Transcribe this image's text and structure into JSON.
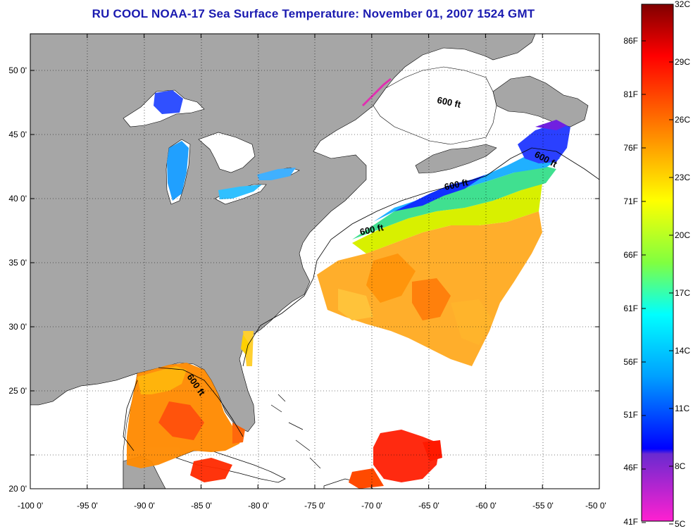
{
  "title": "RU COOL  NOAA-17  Sea Surface Temperature:  November 01, 2007 1524 GMT",
  "map": {
    "lon_ticks": [
      "-100 0'",
      "-95 0'",
      "-90 0'",
      "-85 0'",
      "-80 0'",
      "-75 0'",
      "-70 0'",
      "-65 0'",
      "-60 0'",
      "-55 0'",
      "-50 0'"
    ],
    "lat_ticks": [
      "50 0'",
      "45 0'",
      "40 0'",
      "35 0'",
      "30 0'",
      "25 0'",
      "20 0'"
    ],
    "isobath_labels": [
      "600 ft",
      "600 ft",
      "600 ft",
      "600 ft",
      "600 ft"
    ],
    "land_color": "#a6a6a6",
    "water_color": "#ffffff"
  },
  "colorbar": {
    "fahrenheit": [
      "86F",
      "81F",
      "76F",
      "71F",
      "66F",
      "61F",
      "56F",
      "51F",
      "46F",
      "41F"
    ],
    "celsius": [
      "32C",
      "29C",
      "26C",
      "23C",
      "20C",
      "17C",
      "14C",
      "11C",
      "8C",
      "5C"
    ]
  }
}
